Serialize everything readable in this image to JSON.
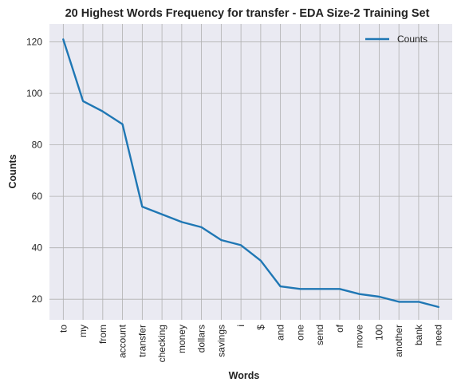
{
  "chart_data": {
    "type": "line",
    "title": "20 Highest Words Frequency for transfer - EDA Size-2 Training Set",
    "xlabel": "Words",
    "ylabel": "Counts",
    "categories": [
      "to",
      "my",
      "from",
      "account",
      "transfer",
      "checking",
      "money",
      "dollars",
      "savings",
      "i",
      "$",
      "and",
      "one",
      "send",
      "of",
      "move",
      "100",
      "another",
      "bank",
      "need"
    ],
    "series": [
      {
        "name": "Counts",
        "values": [
          121,
          97,
          93,
          88,
          56,
          53,
          50,
          48,
          43,
          41,
          35,
          25,
          24,
          24,
          24,
          22,
          21,
          19,
          19,
          17
        ]
      }
    ],
    "ylim": [
      12,
      127
    ],
    "yticks": [
      20,
      40,
      60,
      80,
      100,
      120
    ],
    "grid": true,
    "legend_position": "top-right",
    "colors": {
      "line": "#1f77b4",
      "plot_background": "#eaeaf2",
      "grid": "#b0b0b0"
    }
  }
}
